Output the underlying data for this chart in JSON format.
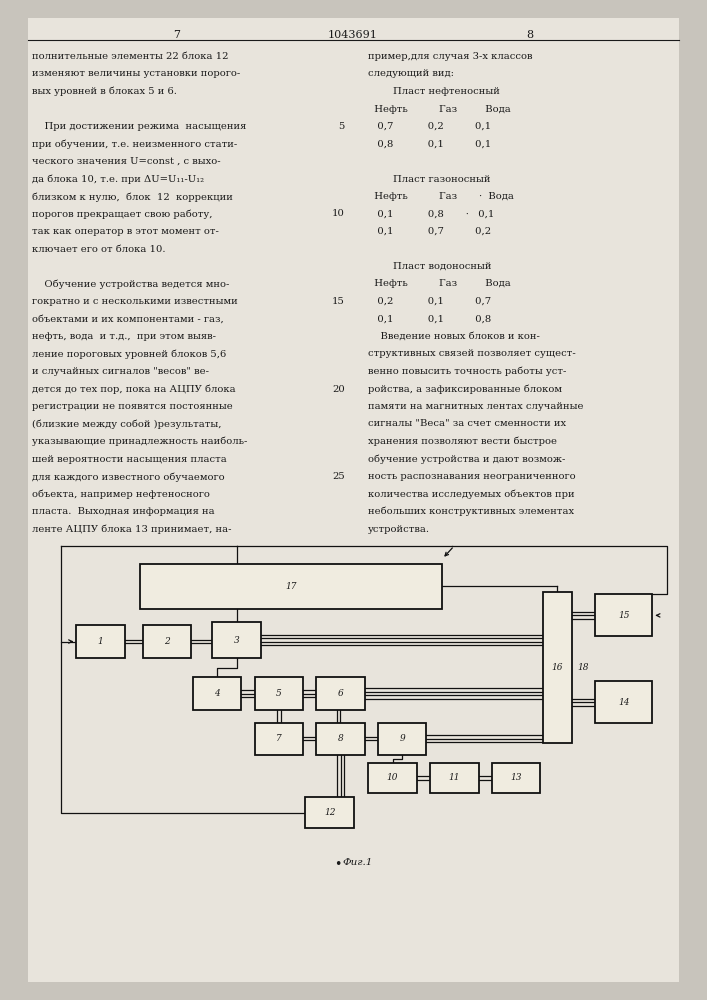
{
  "bg_color": "#c8c4bc",
  "page_color": "#e8e4dc",
  "text_color": "#1a1a1a",
  "header": {
    "left_num": "7",
    "center_num": "1043691",
    "right_num": "8"
  },
  "left_col_lines": [
    "полнительные элементы 22 блока 12",
    "изменяют величины установки порого-",
    "вых уровней в блоках 5 и 6.",
    "",
    "    При достижении режима  насыщения",
    "при обучении, т.е. неизменного стати-",
    "ческого значения U=const , с выхо-",
    "да блока 10, т.е. при ΔU=U₁₁-U₁₂",
    "близком к нулю,  блок  12  коррекции",
    "порогов прекращает свою работу,",
    "так как оператор в этот момент от-",
    "ключает его от блока 10.",
    "",
    "    Обучение устройства ведется мно-",
    "гократно и с несколькими известными",
    "объектами и их компонентами - газ,",
    "нефть, вода  и т.д.,  при этом выяв-",
    "ление пороговых уровней блоков 5,6",
    "и случайных сигналов \"весов\" ве-",
    "дется до тех пор, пока на АЦПУ блока",
    "регистрации не появятся постоянные",
    "(близкие между собой )результаты,",
    "указывающие принадлежность наиболь-",
    "шей вероятности насыщения пласта",
    "для каждого известного обучаемого",
    "объекта, например нефтеносного",
    "пласта.  Выходная информация на",
    "ленте АЦПУ блока 13 принимает, на-"
  ],
  "right_col_lines": [
    "пример,для случая 3-х классов",
    "следующий вид:",
    "        Пласт нефтеносный",
    "  Нефть          Газ         Вода",
    "   0,7           0,2          0,1",
    "   0,8           0,1          0,1",
    "",
    "        Пласт газоносный",
    "  Нефть          Газ       ·  Вода",
    "   0,1           0,8       ·   0,1",
    "   0,1           0,7          0,2",
    "",
    "        Пласт водоносный",
    "  Нефть          Газ         Вода",
    "   0,2           0,1          0,7",
    "   0,1           0,1          0,8",
    "    Введение новых блоков и кон-",
    "структивных связей позволяет сущест-",
    "венно повысить точность работы уст-",
    "ройства, а зафиксированные блоком",
    "памяти на магнитных лентах случайные",
    "сигналы \"Веса\" за счет сменности их",
    "хранения позволяют вести быстрое",
    "обучение устройства и дают возмож-",
    "ность распознавания неограниченного",
    "количества исследуемых объектов при",
    "небольших конструктивных элементах",
    "устройства."
  ],
  "line_numbers": {
    "4": "5",
    "9": "10",
    "14": "15",
    "19": "20",
    "24": "25"
  },
  "fig_caption": "Фиг.1"
}
